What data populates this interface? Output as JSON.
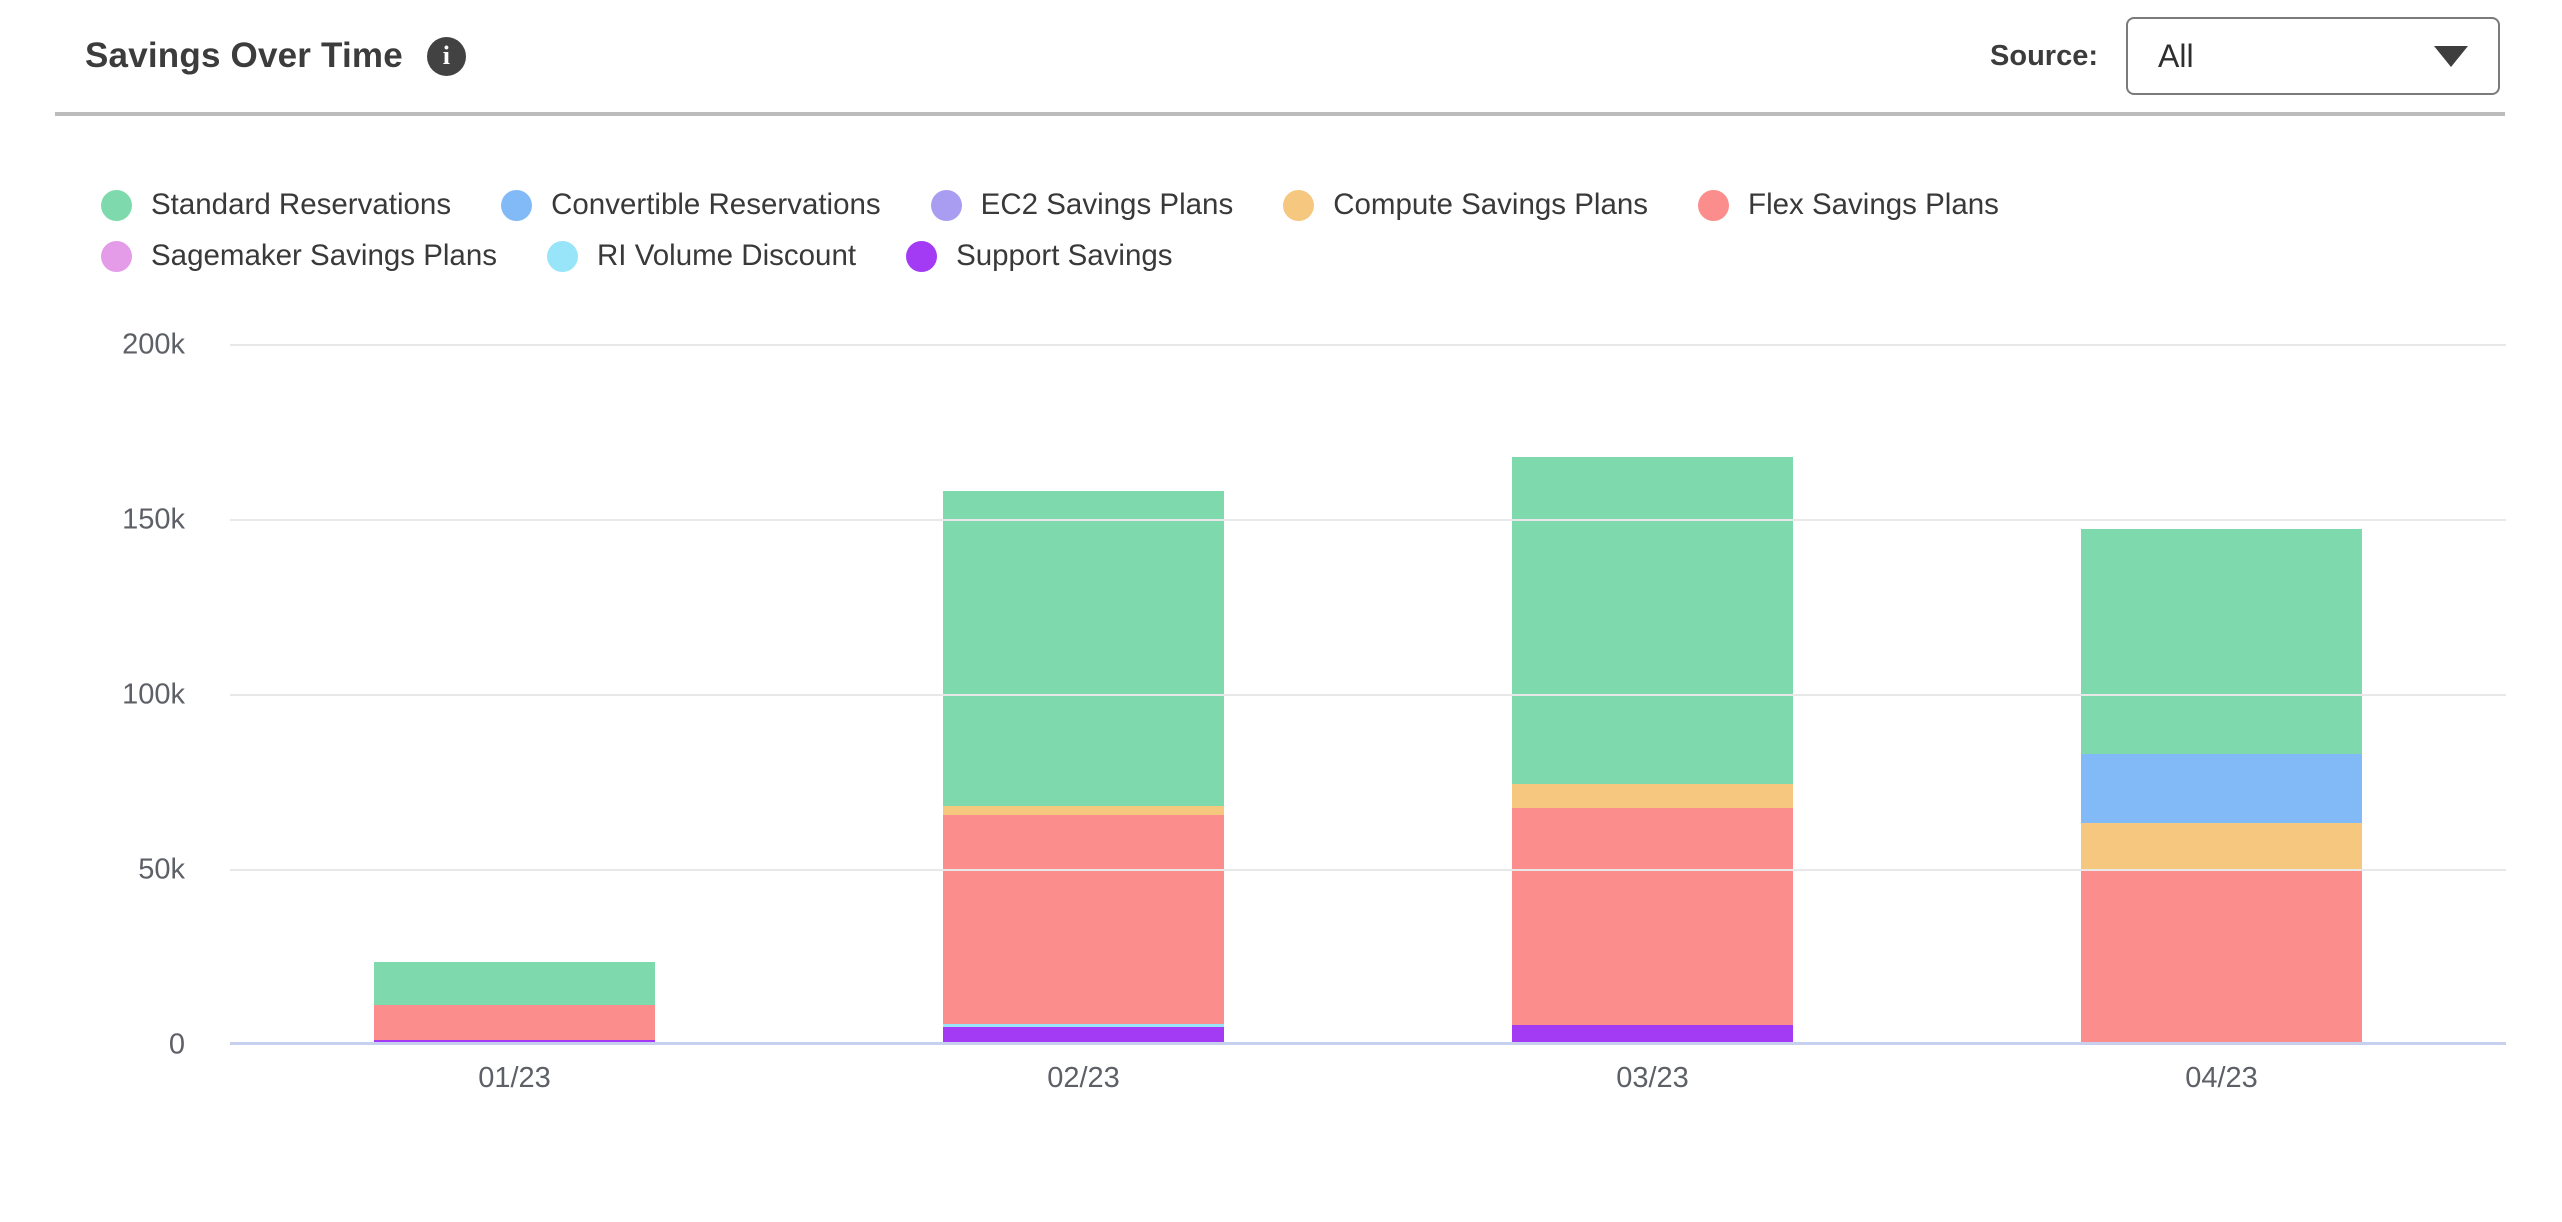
{
  "header": {
    "title": "Savings Over Time",
    "info_icon_glyph": "i",
    "source_label": "Source:",
    "source_value": "All"
  },
  "chart_data": {
    "type": "bar",
    "stacked": true,
    "title": "Savings Over Time",
    "categories": [
      "01/23",
      "02/23",
      "03/23",
      "04/23"
    ],
    "series": [
      {
        "name": "Standard Reservations",
        "color": "#7edaad",
        "values": [
          12100,
          90000,
          93500,
          64500
        ]
      },
      {
        "name": "Convertible Reservations",
        "color": "#82baf8",
        "values": [
          0,
          0,
          0,
          19600
        ]
      },
      {
        "name": "EC2 Savings Plans",
        "color": "#a89df1",
        "values": [
          0,
          0,
          0,
          0
        ]
      },
      {
        "name": "Compute Savings Plans",
        "color": "#f6c77e",
        "values": [
          0,
          2500,
          6800,
          13400
        ]
      },
      {
        "name": "Flex Savings Plans",
        "color": "#fb8d8d",
        "values": [
          10200,
          59700,
          62000,
          49500
        ]
      },
      {
        "name": "Sagemaker Savings Plans",
        "color": "#e59ce8",
        "values": [
          0,
          0,
          0,
          0
        ]
      },
      {
        "name": "RI Volume Discount",
        "color": "#98e5f9",
        "values": [
          0,
          700,
          0,
          0
        ]
      },
      {
        "name": "Support Savings",
        "color": "#a43bf4",
        "values": [
          800,
          4700,
          5200,
          0
        ]
      }
    ],
    "stack_order": "bottom-to-top equals reverse of series list (Support Savings at bottom, Standard Reservations on top)",
    "approx_totals": [
      23100,
      157600,
      167500,
      147000
    ],
    "ylim": [
      0,
      200000
    ],
    "yticks": [
      0,
      50000,
      100000,
      150000,
      200000
    ],
    "ytick_labels": [
      "0",
      "50k",
      "100k",
      "150k",
      "200k"
    ],
    "grid": "horizontal",
    "legend_position": "top-left",
    "xlabel": "",
    "ylabel": ""
  }
}
